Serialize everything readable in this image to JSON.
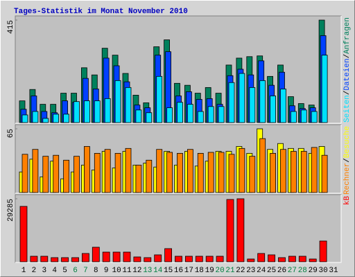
{
  "title": "Tages-Statistik im Monat November 2010",
  "chart_data": [
    {
      "type": "bar",
      "categories": [
        "1",
        "2",
        "3",
        "4",
        "5",
        "6",
        "7",
        "8",
        "9",
        "10",
        "11",
        "12",
        "13",
        "14",
        "15",
        "16",
        "17",
        "18",
        "19",
        "20",
        "21",
        "22",
        "23",
        "24",
        "25",
        "26",
        "27",
        "28",
        "29",
        "30",
        "31"
      ],
      "highlight_indices": [
        5,
        6,
        12,
        13,
        19,
        20,
        26,
        27
      ],
      "highlight_color": "#008040",
      "legend_separator": "/",
      "ylim": [
        0,
        415
      ],
      "yticks": [
        415
      ],
      "series": [
        {
          "name": "Anfragen",
          "color": "#00805c",
          "values": [
            88,
            134,
            74,
            74,
            119,
            119,
            222,
            193,
            301,
            273,
            199,
            111,
            80,
            307,
            335,
            159,
            151,
            119,
            142,
            119,
            233,
            261,
            267,
            270,
            187,
            233,
            105,
            77,
            71,
            415,
            null
          ]
        },
        {
          "name": "Dateien",
          "color": "#0040ff",
          "values": [
            54,
            108,
            45,
            40,
            88,
            82,
            179,
            136,
            261,
            230,
            165,
            71,
            60,
            273,
            287,
            108,
            125,
            94,
            97,
            74,
            190,
            216,
            193,
            250,
            151,
            204,
            68,
            57,
            60,
            352,
            null
          ]
        },
        {
          "name": "Seiten",
          "color": "#00e0ff",
          "values": [
            31,
            45,
            17,
            34,
            34,
            85,
            88,
            88,
            97,
            170,
            142,
            51,
            40,
            187,
            60,
            82,
            74,
            45,
            65,
            65,
            162,
            199,
            142,
            170,
            108,
            136,
            45,
            51,
            45,
            273,
            null
          ]
        }
      ]
    },
    {
      "type": "bar",
      "legend_separator": "/",
      "ylim": [
        0,
        65
      ],
      "yticks": [
        65
      ],
      "series": [
        {
          "name": "Besuche",
          "color": "#ffff00",
          "values": [
            21,
            34,
            16,
            32,
            14,
            21,
            28,
            23,
            42,
            25,
            42,
            28,
            30,
            26,
            42,
            28,
            42,
            27,
            32,
            42,
            42,
            47,
            40,
            65,
            44,
            50,
            45,
            45,
            40,
            47,
            null
          ]
        },
        {
          "name": "Rechner",
          "color": "#ff8000",
          "values": [
            39,
            44,
            37,
            38,
            33,
            37,
            47,
            40,
            44,
            40,
            45,
            28,
            33,
            44,
            41,
            40,
            44,
            40,
            41,
            41,
            39,
            45,
            37,
            55,
            40,
            44,
            42,
            42,
            46,
            38,
            null
          ]
        }
      ]
    },
    {
      "type": "bar",
      "legend_separator": "/",
      "ylim": [
        0,
        29285
      ],
      "yticks": [
        29285
      ],
      "series": [
        {
          "name": "kB",
          "color": "#ff0000",
          "values": [
            25745,
            2575,
            2575,
            1930,
            1930,
            1930,
            3860,
            6760,
            4500,
            4500,
            4500,
            2250,
            1930,
            3220,
            6115,
            2575,
            2575,
            2575,
            2575,
            2575,
            28960,
            29285,
            1290,
            3860,
            3220,
            1930,
            2575,
            2575,
            1290,
            9650,
            null
          ]
        }
      ]
    }
  ]
}
